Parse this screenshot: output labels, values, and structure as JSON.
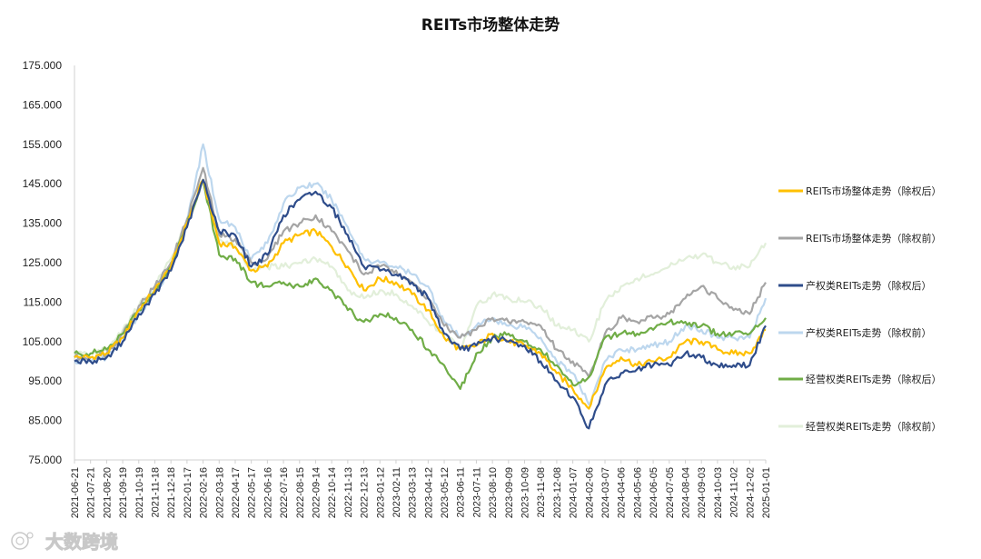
{
  "chart_data": {
    "type": "line",
    "title": "REITs市场整体走势",
    "xlabel": "",
    "ylabel": "",
    "ylim": [
      75,
      175
    ],
    "yticks": [
      "175.000",
      "165.000",
      "155.000",
      "145.000",
      "135.000",
      "125.000",
      "115.000",
      "105.000",
      "95.000",
      "85.000",
      "75.000"
    ],
    "yticks_values": [
      175,
      165,
      155,
      145,
      135,
      125,
      115,
      105,
      95,
      85,
      75
    ],
    "grid": false,
    "legend_position": "right",
    "x": [
      "2021-06-21",
      "2021-07-21",
      "2021-08-20",
      "2021-09-19",
      "2021-10-19",
      "2021-11-18",
      "2021-12-18",
      "2022-01-17",
      "2022-02-16",
      "2022-03-18",
      "2022-04-17",
      "2022-05-17",
      "2022-06-16",
      "2022-07-16",
      "2022-08-15",
      "2022-09-14",
      "2022-10-14",
      "2022-11-13",
      "2022-12-13",
      "2023-01-12",
      "2023-02-11",
      "2023-03-13",
      "2023-04-12",
      "2023-05-12",
      "2023-06-11",
      "2023-07-11",
      "2023-08-10",
      "2023-09-09",
      "2023-10-09",
      "2023-11-08",
      "2023-12-08",
      "2024-01-07",
      "2024-02-06",
      "2024-03-07",
      "2024-04-06",
      "2024-05-06",
      "2024-06-05",
      "2024-07-05",
      "2024-08-04",
      "2024-09-03",
      "2024-10-03",
      "2024-11-02",
      "2024-12-02",
      "2025-01-01"
    ],
    "series": [
      {
        "name": "REITs市场整体走势（除权后）",
        "color": "#FFC000",
        "width": 2.2,
        "values": [
          101,
          101,
          102,
          106,
          113,
          118,
          124,
          135,
          146,
          130,
          129,
          123,
          124,
          130,
          132,
          133,
          129,
          124,
          118,
          121,
          120,
          117,
          113,
          106,
          103,
          104,
          107,
          105,
          104,
          102,
          97,
          93,
          88,
          98,
          101,
          99,
          100,
          101,
          105,
          105,
          103,
          102,
          102,
          108
        ]
      },
      {
        "name": "REITs市场整体走势（除权前）",
        "color": "#A5A5A5",
        "width": 2.2,
        "values": [
          101,
          101,
          102,
          107,
          114,
          119,
          125,
          136,
          149,
          132,
          131,
          125,
          126,
          133,
          135,
          137,
          133,
          128,
          122,
          124,
          123,
          120,
          116,
          109,
          106,
          108,
          111,
          110,
          110,
          109,
          103,
          100,
          96,
          107,
          111,
          110,
          111,
          112,
          116,
          119,
          116,
          113,
          112,
          120
        ]
      },
      {
        "name": "产权类REITs走势（除权后）",
        "color": "#2F4D8B",
        "width": 2.2,
        "values": [
          100,
          100,
          101,
          105,
          112,
          117,
          123,
          134,
          146,
          133,
          132,
          124,
          127,
          137,
          141,
          143,
          139,
          132,
          124,
          123,
          122,
          120,
          116,
          107,
          103,
          104,
          106,
          105,
          104,
          100,
          95,
          91,
          83,
          94,
          97,
          98,
          99,
          99,
          102,
          101,
          99,
          99,
          99,
          109
        ]
      },
      {
        "name": "产权类REITs走势（除权前）",
        "color": "#BDD7EE",
        "width": 2.2,
        "values": [
          100,
          100,
          101,
          105,
          112,
          117,
          124,
          135,
          155,
          136,
          134,
          126,
          130,
          140,
          144,
          145,
          141,
          134,
          126,
          125,
          124,
          122,
          119,
          110,
          106,
          109,
          111,
          109,
          109,
          106,
          100,
          97,
          89,
          100,
          103,
          103,
          104,
          105,
          109,
          108,
          106,
          106,
          106,
          116
        ]
      },
      {
        "name": "经营权类REITs走势（除权后）",
        "color": "#70AD47",
        "width": 2.2,
        "values": [
          102,
          102,
          103,
          107,
          113,
          118,
          124,
          135,
          146,
          127,
          126,
          120,
          119,
          120,
          119,
          121,
          118,
          113,
          110,
          112,
          111,
          108,
          103,
          99,
          93,
          102,
          106,
          107,
          105,
          103,
          99,
          94,
          96,
          106,
          107,
          107,
          108,
          110,
          110,
          109,
          107,
          107,
          107,
          111
        ]
      },
      {
        "name": "经营权类REITs走势（除权前）",
        "color": "#E2EFDA",
        "width": 2.2,
        "values": [
          102,
          102,
          103,
          108,
          114,
          119,
          126,
          136,
          145,
          131,
          129,
          123,
          124,
          124,
          125,
          126,
          124,
          118,
          116,
          118,
          117,
          114,
          110,
          107,
          103,
          114,
          117,
          116,
          115,
          114,
          109,
          108,
          105,
          115,
          119,
          121,
          122,
          124,
          126,
          127,
          125,
          124,
          124,
          130
        ]
      }
    ]
  },
  "watermark": {
    "text": "大数跨境",
    "icon": "logo-swirl-icon"
  }
}
